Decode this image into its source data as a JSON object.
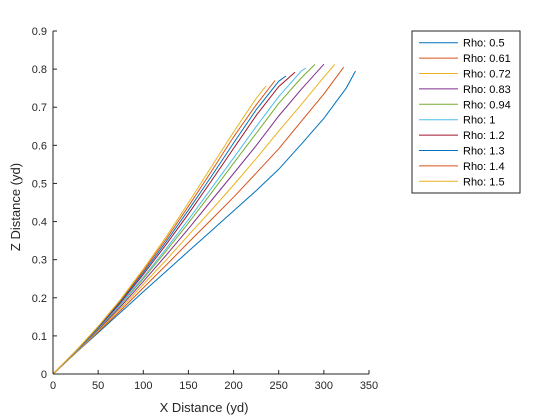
{
  "chart_data": {
    "type": "line",
    "xlabel": "X Distance (yd)",
    "ylabel": "Z Distance (yd)",
    "xlim": [
      0,
      350
    ],
    "ylim": [
      0,
      0.9
    ],
    "xticks": [
      0,
      50,
      100,
      150,
      200,
      250,
      300,
      350
    ],
    "yticks": [
      0,
      0.1,
      0.2,
      0.3,
      0.4,
      0.5,
      0.6,
      0.7,
      0.8,
      0.9
    ],
    "grid": false,
    "legend_position": "top-right-outside",
    "series": [
      {
        "name": "Rho: 0.5",
        "color": "#0072BD",
        "x": [
          0,
          25,
          50,
          75,
          100,
          125,
          150,
          175,
          200,
          225,
          250,
          275,
          300,
          325,
          335
        ],
        "y": [
          0,
          0.055,
          0.108,
          0.162,
          0.216,
          0.269,
          0.322,
          0.375,
          0.428,
          0.481,
          0.537,
          0.603,
          0.671,
          0.751,
          0.795
        ]
      },
      {
        "name": "Rho: 0.61",
        "color": "#D95319",
        "x": [
          0,
          25,
          50,
          75,
          100,
          125,
          150,
          175,
          200,
          225,
          250,
          275,
          300,
          322
        ],
        "y": [
          0,
          0.056,
          0.111,
          0.167,
          0.226,
          0.285,
          0.345,
          0.404,
          0.464,
          0.527,
          0.591,
          0.663,
          0.735,
          0.805
        ]
      },
      {
        "name": "Rho: 0.72",
        "color": "#EDB120",
        "x": [
          0,
          25,
          50,
          75,
          100,
          125,
          150,
          175,
          200,
          225,
          250,
          275,
          300,
          312
        ],
        "y": [
          0,
          0.056,
          0.113,
          0.172,
          0.235,
          0.298,
          0.364,
          0.429,
          0.496,
          0.565,
          0.637,
          0.707,
          0.779,
          0.812
        ]
      },
      {
        "name": "Rho: 0.83",
        "color": "#7E2F8E",
        "x": [
          0,
          25,
          50,
          75,
          100,
          125,
          150,
          175,
          200,
          225,
          250,
          275,
          300
        ],
        "y": [
          0,
          0.057,
          0.116,
          0.177,
          0.243,
          0.311,
          0.381,
          0.454,
          0.526,
          0.599,
          0.677,
          0.747,
          0.813
        ]
      },
      {
        "name": "Rho: 0.94",
        "color": "#77AC30",
        "x": [
          0,
          25,
          50,
          75,
          100,
          125,
          150,
          175,
          200,
          225,
          250,
          275,
          290
        ],
        "y": [
          0,
          0.058,
          0.118,
          0.182,
          0.25,
          0.322,
          0.396,
          0.474,
          0.553,
          0.631,
          0.71,
          0.777,
          0.812
        ]
      },
      {
        "name": "Rho: 1",
        "color": "#4DBEEE",
        "x": [
          0,
          25,
          50,
          75,
          100,
          125,
          150,
          175,
          200,
          225,
          250,
          275,
          280
        ],
        "y": [
          0,
          0.058,
          0.119,
          0.184,
          0.254,
          0.328,
          0.405,
          0.486,
          0.567,
          0.649,
          0.728,
          0.795,
          0.803
        ]
      },
      {
        "name": "Rho: 1.2",
        "color": "#A2142F",
        "x": [
          0,
          25,
          50,
          75,
          100,
          125,
          150,
          175,
          200,
          225,
          250,
          268
        ],
        "y": [
          0,
          0.059,
          0.121,
          0.188,
          0.261,
          0.339,
          0.42,
          0.505,
          0.592,
          0.678,
          0.754,
          0.792
        ]
      },
      {
        "name": "Rho: 1.3",
        "color": "#0072BD",
        "x": [
          0,
          25,
          50,
          75,
          100,
          125,
          150,
          175,
          200,
          225,
          250,
          258
        ],
        "y": [
          0,
          0.059,
          0.122,
          0.191,
          0.266,
          0.346,
          0.43,
          0.517,
          0.606,
          0.693,
          0.768,
          0.782
        ]
      },
      {
        "name": "Rho: 1.4",
        "color": "#D95319",
        "x": [
          0,
          25,
          50,
          75,
          100,
          125,
          150,
          175,
          200,
          225,
          246
        ],
        "y": [
          0,
          0.06,
          0.124,
          0.194,
          0.271,
          0.353,
          0.44,
          0.53,
          0.622,
          0.706,
          0.77
        ]
      },
      {
        "name": "Rho: 1.5",
        "color": "#EDB120",
        "x": [
          0,
          25,
          50,
          75,
          100,
          125,
          150,
          175,
          200,
          225,
          236
        ],
        "y": [
          0,
          0.06,
          0.125,
          0.196,
          0.275,
          0.359,
          0.449,
          0.542,
          0.635,
          0.723,
          0.756
        ]
      }
    ]
  }
}
